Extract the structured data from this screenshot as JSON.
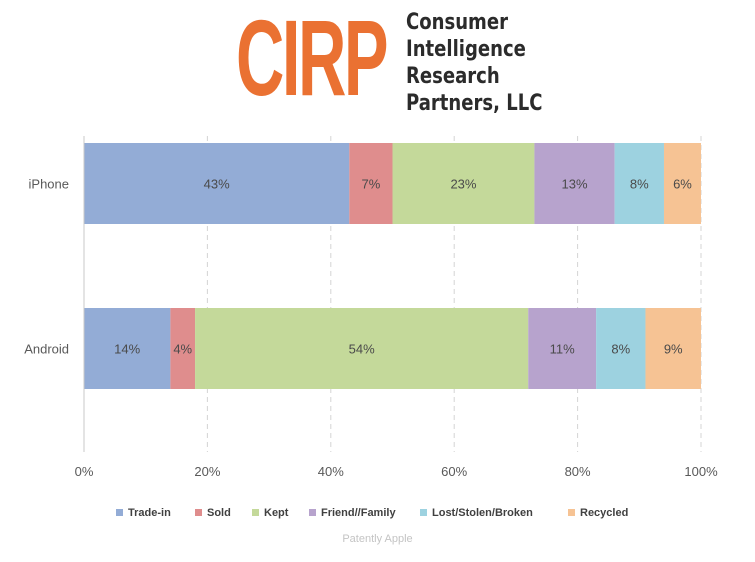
{
  "header": {
    "logo_text": "CIRP",
    "company_lines": [
      "Consumer",
      "Intelligence",
      "Research",
      "Partners, LLC"
    ]
  },
  "watermark": "Patently Apple",
  "chart_data": {
    "type": "bar",
    "orientation": "horizontal",
    "stacked": true,
    "categories": [
      "iPhone",
      "Android"
    ],
    "series": [
      {
        "name": "Trade-in",
        "color": "#93acd6",
        "values": [
          43,
          14
        ],
        "labels": [
          "43%",
          "14%"
        ]
      },
      {
        "name": "Sold",
        "color": "#df8d8d",
        "values": [
          7,
          4
        ],
        "labels": [
          "7%",
          "4%"
        ]
      },
      {
        "name": "Kept",
        "color": "#c4d99a",
        "values": [
          23,
          54
        ],
        "labels": [
          "23%",
          "54%"
        ]
      },
      {
        "name": "Friend//Family",
        "color": "#b7a3cd",
        "values": [
          13,
          11
        ],
        "labels": [
          "13%",
          "11%"
        ]
      },
      {
        "name": "Lost/Stolen/Broken",
        "color": "#9dd2e0",
        "values": [
          8,
          8
        ],
        "labels": [
          "8%",
          "8%"
        ]
      },
      {
        "name": "Recycled",
        "color": "#f6c394",
        "values": [
          6,
          9
        ],
        "labels": [
          "6%",
          "9%"
        ]
      }
    ],
    "xlim": [
      0,
      100
    ],
    "x_ticks": [
      0,
      20,
      40,
      60,
      80,
      100
    ],
    "x_tick_labels": [
      "0%",
      "20%",
      "40%",
      "60%",
      "80%",
      "100%"
    ],
    "grid": "vertical-dashed",
    "legend_position": "bottom"
  }
}
